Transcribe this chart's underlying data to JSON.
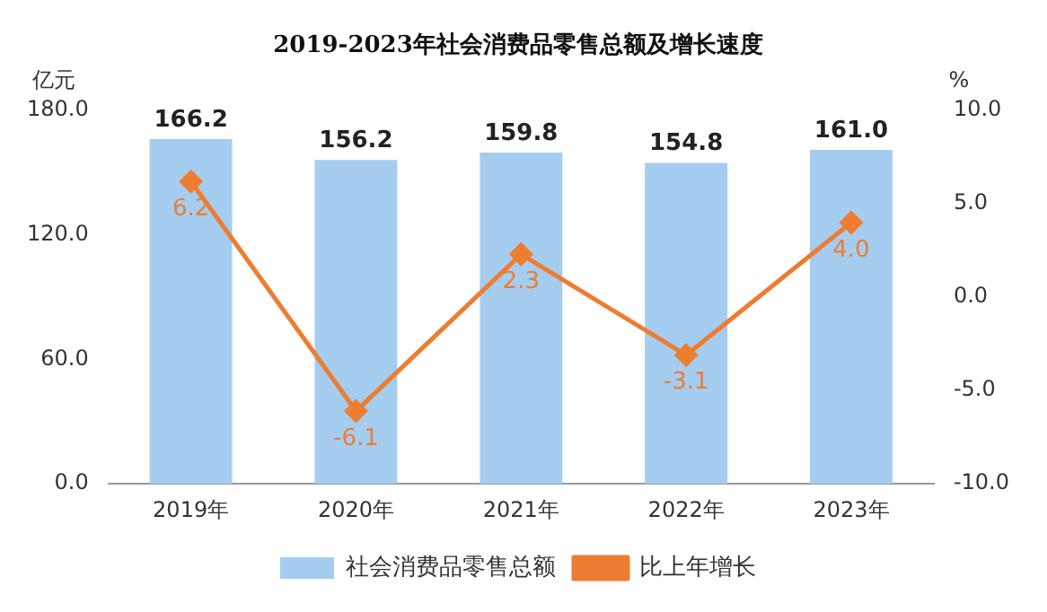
{
  "chart_data": {
    "type": "bar",
    "title": "2019-2023年社会消费品零售总额及增长速度",
    "ylabel": "亿元",
    "y2label": "%",
    "categories": [
      "2019年",
      "2020年",
      "2021年",
      "2022年",
      "2023年"
    ],
    "series": [
      {
        "name": "社会消费品零售总额",
        "color": "#a5cdf0",
        "values": [
          166.2,
          156.2,
          159.8,
          154.8,
          161.0
        ],
        "value_labels": [
          "166.2",
          "156.2",
          "159.8",
          "154.8",
          "161.0"
        ]
      },
      {
        "name": "比上年增长",
        "type": "line",
        "axis": "y2",
        "color": "#ed7d31",
        "marker": "diamond",
        "values": [
          6.2,
          -6.1,
          2.3,
          -3.1,
          4.0
        ],
        "value_labels": [
          "6.2",
          "-6.1",
          "2.3",
          "-3.1",
          "4.0"
        ]
      }
    ],
    "ylim": [
      0,
      180
    ],
    "yticks": [
      {
        "value": 0,
        "label": "0.0"
      },
      {
        "value": 60,
        "label": "60.0"
      },
      {
        "value": 120,
        "label": "120.0"
      },
      {
        "value": 180,
        "label": "180.0"
      }
    ],
    "y2lim": [
      -10,
      10
    ],
    "y2ticks": [
      {
        "value": -10,
        "label": "-10.0"
      },
      {
        "value": -5,
        "label": "-5.0"
      },
      {
        "value": 0,
        "label": "0.0"
      },
      {
        "value": 5,
        "label": "5.0"
      },
      {
        "value": 10,
        "label": "10.0"
      }
    ],
    "grid": false,
    "legend": "bottom"
  }
}
